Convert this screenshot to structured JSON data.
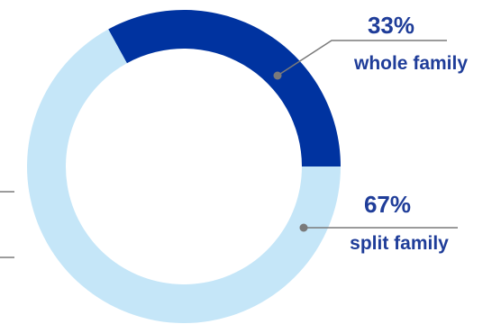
{
  "chart_data": {
    "type": "pie",
    "style": "donut",
    "slices": [
      {
        "label": "whole family",
        "percent_label": "33%",
        "value": 33,
        "color": "#0033a0"
      },
      {
        "label": "split family",
        "percent_label": "67%",
        "value": 67,
        "color": "#c5e6f8"
      }
    ],
    "annotation_text_color": "#1f3d99",
    "leader_line_color": "#7a7a7a"
  }
}
